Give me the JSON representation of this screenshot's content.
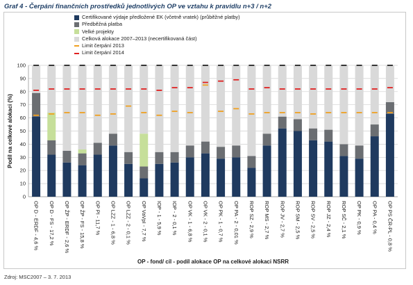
{
  "title": "Graf 4 - Čerpání finančních prostředků jednotlivých OP ve vztahu k pravidlu n+3 / n+2",
  "source": "Zdroj: MSC2007 – 3. 7. 2013",
  "colors": {
    "certified": "#1f3a5f",
    "predbezna": "#6b6e72",
    "velke": "#c6df9a",
    "celkova": "#d9d9d9",
    "limit2013": "#f0a020",
    "limit2014": "#e02020"
  },
  "chart_data": {
    "type": "bar",
    "stacked": true,
    "title": "",
    "xlabel": "OP - fond/ cíl - podíl alokace OP na celkové alokaci NSRR",
    "ylabel": "Podíl na celkové alokaci (%)",
    "ylim": [
      0,
      100
    ],
    "yticks": [
      0,
      10,
      20,
      30,
      40,
      50,
      60,
      70,
      80,
      90,
      100
    ],
    "grid": true,
    "legend_position": "top-left",
    "categories": [
      "OP D - ERDF - 4,6 %",
      "OP D - FS - 17,2 %",
      "OP ŽP - ERDF - 2,6 %",
      "OP ŽP - FS - 15,8 %",
      "OP PI - 11,7 %",
      "OP LZZ - 1 - 6,8 %",
      "OP LZZ - 2 - 0,1 %",
      "OP VaVpI - 7,7 %",
      "IOP - 1 - 5,9 %",
      "IOP - 2 - 0,1 %",
      "OP VK - 1 - 6,8 %",
      "OP VK - 2 - 0,1 %",
      "OP PK - 1 - 0,7 %",
      "OP PA - 2 - 0,01 %",
      "ROP SZ - 2,9 %",
      "ROP MS - 2,7 %",
      "ROP JV - 2,7 %",
      "ROP SM - 2,5 %",
      "ROP SV - 2,5 %",
      "ROP JZ - 2,4 %",
      "ROP SČ - 2,1 %",
      "OP PK - 0,9 %",
      "OP PA - 0,4 %",
      "OP PS ČR-PL - 0,8 %"
    ],
    "series": [
      {
        "name": "Certifikované výdaje předložené EK (včetně vratek) (průběžné platby)",
        "color": "#1f3a5f",
        "values": [
          61,
          32,
          26,
          24,
          32,
          39,
          25,
          14,
          25,
          26,
          30,
          33,
          29,
          30,
          22,
          39,
          52,
          50,
          43,
          42,
          31,
          29,
          46,
          63
        ]
      },
      {
        "name": "Předběžná platba",
        "color": "#6b6e72",
        "values": [
          18,
          11,
          9,
          9,
          9,
          9,
          9,
          9,
          9,
          8,
          9,
          9,
          9,
          9,
          9,
          9,
          9,
          9,
          9,
          9,
          9,
          10,
          9,
          9
        ]
      },
      {
        "name": "Velké projekty",
        "color": "#c6df9a",
        "values": [
          0,
          21,
          0,
          3,
          0,
          0,
          0,
          25,
          0,
          0,
          0,
          0,
          0,
          0,
          0,
          0,
          0,
          0,
          0,
          0,
          0,
          0,
          0,
          0
        ]
      },
      {
        "name": "Celková alokace 2007–2013 (necertifikovaná část)",
        "color": "#d9d9d9",
        "values": [
          21,
          36,
          65,
          64,
          59,
          52,
          66,
          52,
          66,
          66,
          61,
          58,
          62,
          61,
          69,
          52,
          39,
          41,
          48,
          49,
          60,
          61,
          45,
          28
        ]
      }
    ],
    "markers": [
      {
        "name": "Limit čerpání 2013",
        "color": "#f0a020",
        "values": [
          62,
          63,
          64,
          64,
          62,
          63,
          69,
          64,
          62,
          65,
          64,
          85,
          65,
          67,
          63,
          64,
          64,
          64,
          63,
          64,
          64,
          64,
          64,
          64
        ]
      },
      {
        "name": "Limit čerpání 2014",
        "color": "#e02020",
        "values": [
          81,
          82,
          82,
          82,
          82,
          82,
          82,
          82,
          81,
          83,
          83,
          87,
          88,
          89,
          82,
          83,
          82,
          82,
          82,
          82,
          82,
          82,
          82,
          83
        ]
      }
    ]
  }
}
